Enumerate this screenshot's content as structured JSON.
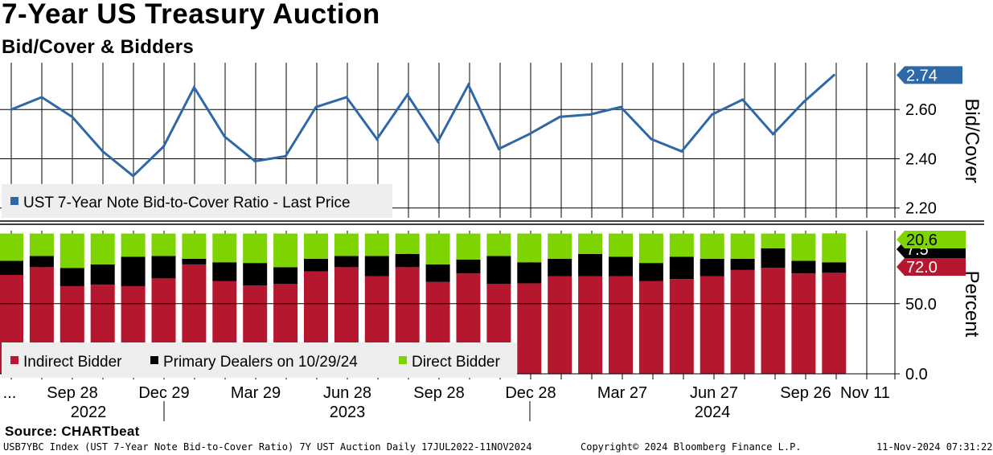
{
  "header": {
    "title": "7-Year US Treasury Auction",
    "subtitle": "Bid/Cover & Bidders"
  },
  "chart_data": [
    {
      "type": "line",
      "panel": "top",
      "title": "7-Year US Treasury Auction",
      "ylabel": "Bid/Cover",
      "ylim": [
        2.16,
        2.79
      ],
      "yticks": [
        "2.60",
        "2.40",
        "2.20"
      ],
      "legend": "UST 7-Year Note Bid-to-Cover Ratio - Last Price",
      "last_value_label": "2.74",
      "series": [
        {
          "name": "UST 7-Year Note Bid-to-Cover Ratio - Last Price",
          "color": "#2e68a8",
          "values": [
            2.6,
            2.65,
            2.57,
            2.43,
            2.33,
            2.45,
            2.69,
            2.49,
            2.39,
            2.41,
            2.61,
            2.65,
            2.48,
            2.66,
            2.47,
            2.7,
            2.44,
            2.5,
            2.57,
            2.58,
            2.61,
            2.48,
            2.43,
            2.58,
            2.64,
            2.5,
            2.63,
            2.74
          ]
        }
      ]
    },
    {
      "type": "bar",
      "stacked": true,
      "panel": "bottom",
      "ylabel": "Percent",
      "ylim": [
        -4,
        102
      ],
      "yticks": [
        "50.0",
        "0.0"
      ],
      "legend": [
        "Indirect Bidder",
        "Primary Dealers on 10/29/24",
        "Direct Bidder"
      ],
      "last_value_labels": {
        "direct": "20.6",
        "dealers": "7.5",
        "indirect": "72.0"
      },
      "x_tick_labels": [
        "...",
        "Sep 28",
        "Dec 29",
        "Mar 29",
        "Jun 28",
        "Sep 28",
        "Dec 28",
        "Mar 27",
        "Jun 27",
        "Sep 26",
        "Nov 11"
      ],
      "year_labels": [
        "2022",
        "2023",
        "2024"
      ],
      "series": [
        {
          "name": "Indirect Bidder",
          "color": "#b5182e",
          "values": [
            70.5,
            76,
            62.5,
            63.5,
            62.5,
            68,
            78,
            66,
            63,
            64,
            73,
            76,
            69.5,
            76,
            65.5,
            71.5,
            64,
            64.5,
            69.5,
            69.5,
            69.5,
            66,
            67.5,
            69.5,
            74,
            75.5,
            71.5,
            72.0
          ]
        },
        {
          "name": "Primary Dealers on 10/29/24",
          "color": "#000000",
          "values": [
            10,
            8,
            13,
            14.5,
            21,
            16,
            4,
            13.5,
            16,
            12,
            9,
            8,
            14.5,
            9.5,
            12.5,
            10,
            20,
            15,
            12.5,
            16,
            14,
            13,
            16,
            12.5,
            8,
            14,
            9,
            7.5
          ]
        },
        {
          "name": "Direct Bidder",
          "color": "#7ed400",
          "values": [
            19.5,
            16,
            24.5,
            22,
            16.5,
            16,
            18,
            20.5,
            21,
            24,
            18,
            16,
            16,
            14.5,
            22,
            18.5,
            16,
            20.5,
            18,
            14.5,
            16.5,
            21,
            16.5,
            18,
            18,
            10.5,
            19.5,
            20.6
          ]
        }
      ]
    }
  ],
  "footer": {
    "source": "Source: CHARTbeat",
    "index_text": "USB7YBC Index (UST 7-Year Note Bid-to-Cover Ratio) 7Y UST Auction  Daily 17JUL2022-11NOV2024",
    "copyright": "Copyright© 2024 Bloomberg Finance L.P.",
    "timestamp": "11-Nov-2024 07:31:22"
  }
}
